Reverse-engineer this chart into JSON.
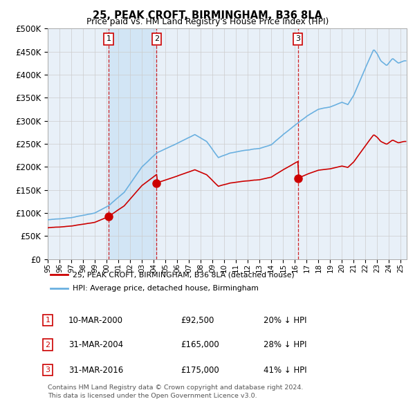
{
  "title": "25, PEAK CROFT, BIRMINGHAM, B36 8LA",
  "subtitle": "Price paid vs. HM Land Registry's House Price Index (HPI)",
  "legend_line1": "25, PEAK CROFT, BIRMINGHAM, B36 8LA (detached house)",
  "legend_line2": "HPI: Average price, detached house, Birmingham",
  "footer_line1": "Contains HM Land Registry data © Crown copyright and database right 2024.",
  "footer_line2": "This data is licensed under the Open Government Licence v3.0.",
  "sales": [
    {
      "label": "1",
      "date": "10-MAR-2000",
      "price": 92500,
      "year": 2000.19,
      "hpi_pct": "20% ↓ HPI"
    },
    {
      "label": "2",
      "date": "31-MAR-2004",
      "price": 165000,
      "year": 2004.25,
      "hpi_pct": "28% ↓ HPI"
    },
    {
      "label": "3",
      "date": "31-MAR-2016",
      "price": 175000,
      "year": 2016.25,
      "hpi_pct": "41% ↓ HPI"
    }
  ],
  "ylim": [
    0,
    500000
  ],
  "yticks": [
    0,
    50000,
    100000,
    150000,
    200000,
    250000,
    300000,
    350000,
    400000,
    450000,
    500000
  ],
  "hpi_color": "#6ab0e0",
  "sale_color": "#cc0000",
  "vline_color": "#cc0000",
  "shade_color": "#d0e4f5",
  "background_color": "#e8f0f8",
  "plot_bg_color": "#ffffff",
  "grid_color": "#cccccc",
  "xlim_start": 1995.0,
  "xlim_end": 2025.5
}
